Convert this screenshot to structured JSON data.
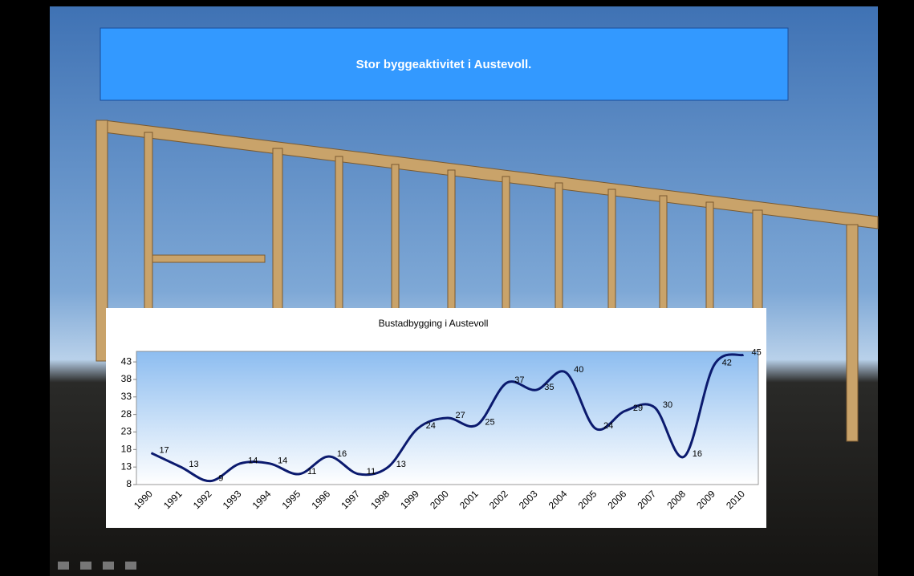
{
  "slide": {
    "title": "Stor byggeaktivitet i Austevoll."
  },
  "chart_data": {
    "type": "line",
    "title": "Bustadbygging i Austevoll",
    "categories": [
      "1990",
      "1991",
      "1992",
      "1993",
      "1994",
      "1995",
      "1996",
      "1997",
      "1998",
      "1999",
      "2000",
      "2001",
      "2002",
      "2003",
      "2004",
      "2005",
      "2006",
      "2007",
      "2008",
      "2009",
      "2010"
    ],
    "series": [
      {
        "name": "Bustadbygging",
        "color": "#0b1a6e",
        "values": [
          17,
          13,
          9,
          14,
          14,
          11,
          16,
          11,
          13,
          24,
          27,
          25,
          37,
          35,
          40,
          24,
          29,
          30,
          16,
          42,
          45
        ]
      }
    ],
    "ylim": [
      8,
      46
    ],
    "yticks": [
      8,
      13,
      18,
      23,
      28,
      33,
      38,
      43
    ]
  }
}
